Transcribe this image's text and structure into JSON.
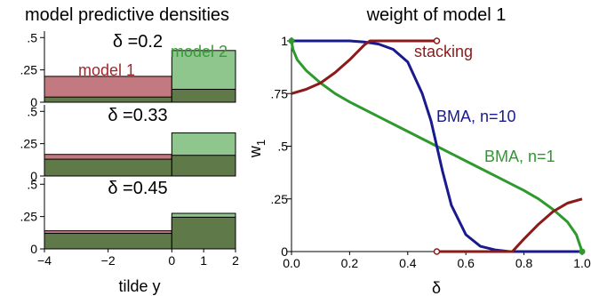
{
  "chart_data": [
    {
      "type": "area",
      "title": "model predictive densities",
      "xlabel": "tilde y",
      "x_ticks": [
        "−4",
        "−2",
        "0",
        "1",
        "2"
      ],
      "xlim": [
        -4,
        2
      ],
      "ylim": [
        0,
        0.55
      ],
      "y_ticks": [
        ".5",
        ".25",
        "0"
      ],
      "series_colors": {
        "model 1": "#c27a80",
        "model 2": "#8ec68e",
        "overlap": "#5f7a48"
      },
      "series_labels": [
        "model 1",
        "model 2"
      ],
      "panels": [
        {
          "delta_label": "δ =0.2",
          "delta": 0.2,
          "model1": {
            "x_range": [
              -4,
              0
            ],
            "density": 0.2
          },
          "model2": {
            "x_range": [
              0,
              2
            ],
            "density": 0.4
          },
          "stacking_mixture": [
            {
              "x_range": [
                -4,
                0
              ],
              "density": 0.04
            },
            {
              "x_range": [
                0,
                2
              ],
              "density": 0.1
            }
          ]
        },
        {
          "delta_label": "δ =0.33",
          "delta": 0.33,
          "model1": {
            "x_range": [
              -4,
              0
            ],
            "density": 0.167
          },
          "model2": {
            "x_range": [
              0,
              2
            ],
            "density": 0.333
          },
          "stacking_mixture": [
            {
              "x_range": [
                -4,
                0
              ],
              "density": 0.13
            },
            {
              "x_range": [
                0,
                2
              ],
              "density": 0.16
            }
          ]
        },
        {
          "delta_label": "δ =0.45",
          "delta": 0.45,
          "model1": {
            "x_range": [
              -4,
              0
            ],
            "density": 0.14
          },
          "model2": {
            "x_range": [
              0,
              2
            ],
            "density": 0.275
          },
          "stacking_mixture": [
            {
              "x_range": [
                -4,
                0
              ],
              "density": 0.12
            },
            {
              "x_range": [
                0,
                2
              ],
              "density": 0.245
            }
          ]
        }
      ]
    },
    {
      "type": "line",
      "title": "weight of model 1",
      "xlabel": "δ",
      "ylabel": "w",
      "ylabel_sub": "1",
      "xlim": [
        0,
        1
      ],
      "ylim": [
        0,
        1
      ],
      "x_ticks": [
        "0.0",
        "0.2",
        "0.4",
        "0.6",
        "0.8",
        "1.0"
      ],
      "y_ticks": [
        "1",
        ".75",
        ".5",
        ".25",
        "0"
      ],
      "series": [
        {
          "name": "stacking",
          "color": "#8b1a1a",
          "segments": [
            {
              "x": [
                0,
                0.05,
                0.1,
                0.15,
                0.2,
                0.25,
                0.27,
                0.3,
                0.35,
                0.4,
                0.45,
                0.5
              ],
              "y": [
                0.75,
                0.77,
                0.8,
                0.85,
                0.91,
                0.98,
                1,
                1,
                1,
                1,
                1,
                1
              ]
            },
            {
              "x": [
                0.5,
                0.55,
                0.6,
                0.65,
                0.7,
                0.75,
                0.76,
                0.8,
                0.85,
                0.9,
                0.95,
                1.0
              ],
              "y": [
                0,
                0,
                0,
                0,
                0,
                0,
                0,
                0.06,
                0.13,
                0.19,
                0.23,
                0.25
              ]
            }
          ]
        },
        {
          "name": "BMA, n=10",
          "color": "#1a1a8f",
          "x": [
            0,
            0.1,
            0.2,
            0.25,
            0.3,
            0.35,
            0.4,
            0.45,
            0.48,
            0.5,
            0.52,
            0.55,
            0.6,
            0.65,
            0.7,
            0.75,
            0.8,
            0.9,
            1.0
          ],
          "y": [
            1,
            1,
            1,
            0.995,
            0.985,
            0.96,
            0.9,
            0.75,
            0.62,
            0.5,
            0.38,
            0.22,
            0.08,
            0.025,
            0.008,
            0,
            0,
            0,
            0
          ]
        },
        {
          "name": "BMA, n=1",
          "color": "#2e9a2e",
          "x": [
            0,
            0.005,
            0.02,
            0.05,
            0.1,
            0.15,
            0.2,
            0.3,
            0.4,
            0.5,
            0.6,
            0.7,
            0.8,
            0.85,
            0.9,
            0.95,
            0.98,
            1.0
          ],
          "y": [
            1,
            0.96,
            0.91,
            0.86,
            0.8,
            0.75,
            0.71,
            0.64,
            0.57,
            0.5,
            0.43,
            0.36,
            0.29,
            0.25,
            0.2,
            0.14,
            0.08,
            0
          ]
        }
      ]
    }
  ]
}
